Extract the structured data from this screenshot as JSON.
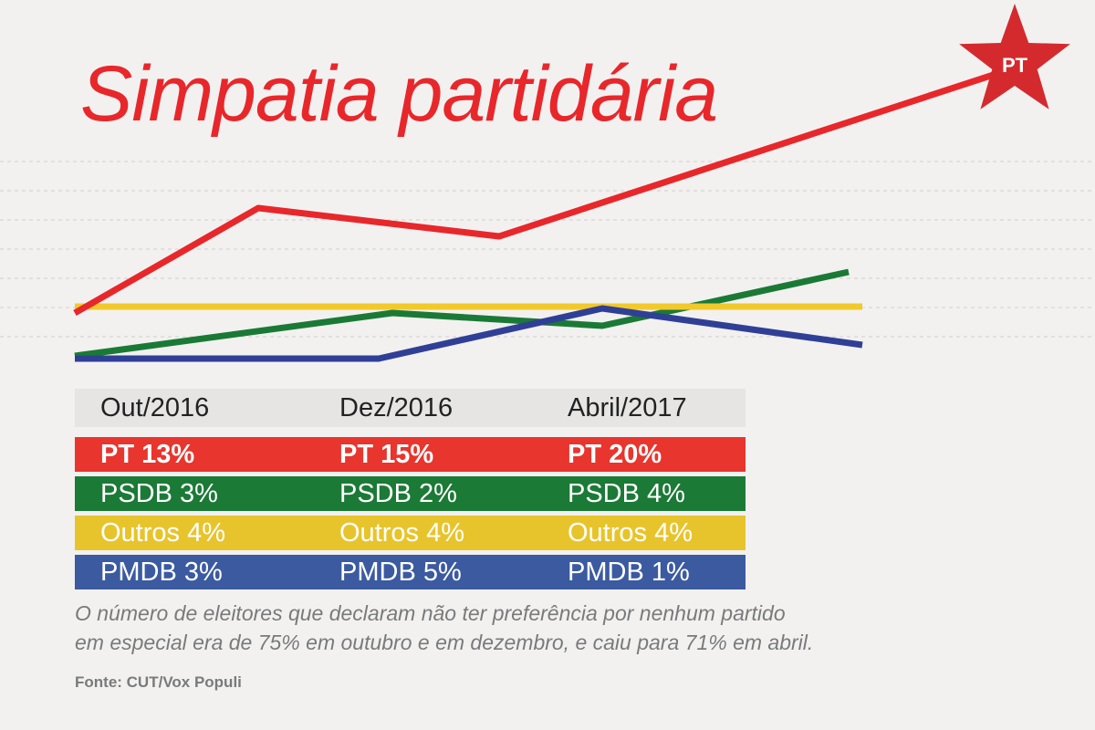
{
  "title": "Simpatia partidária",
  "chart_data": {
    "type": "line",
    "categories": [
      "Out/2016",
      "Dez/2016",
      "Abril/2017"
    ],
    "series": [
      {
        "name": "PT",
        "label_prefix": "PT",
        "values": [
          13,
          15,
          20
        ],
        "color": "#e8272b",
        "text_color": "#ffffff",
        "bold": true
      },
      {
        "name": "PSDB",
        "label_prefix": "PSDB",
        "values": [
          3,
          2,
          4
        ],
        "color": "#1a7a35",
        "text_color": "#ffffff",
        "bold": false
      },
      {
        "name": "Outros",
        "label_prefix": "Outros",
        "values": [
          4,
          4,
          4
        ],
        "color": "#f1c92b",
        "text_color": "#ffffff",
        "bold": false
      },
      {
        "name": "PMDB",
        "label_prefix": "PMDB",
        "values": [
          3,
          5,
          1
        ],
        "color": "#303f96",
        "text_color": "#ffffff",
        "bold": false
      }
    ],
    "table_rows": [
      {
        "cells": [
          "PT 13%",
          "PT 15%",
          "PT 20%"
        ],
        "color": "#e8352d"
      },
      {
        "cells": [
          "PSDB 3%",
          "PSDB 2%",
          "PSDB 4%"
        ],
        "color": "#1b7a36"
      },
      {
        "cells": [
          "Outros 4%",
          "Outros 4%",
          "Outros 4%"
        ],
        "color": "#e8c42c"
      },
      {
        "cells": [
          "PMDB 3%",
          "PMDB 5%",
          "PMDB 1%"
        ],
        "color": "#3b5aa0"
      }
    ],
    "end_marker_label": "PT",
    "grid": true
  },
  "note": {
    "line1": "O número de eleitores que declaram não ter preferência por nenhum partido",
    "line2": "em especial era de 75% em outubro e em dezembro, e caiu para 71% em abril."
  },
  "source": "Fonte: CUT/Vox Populi"
}
